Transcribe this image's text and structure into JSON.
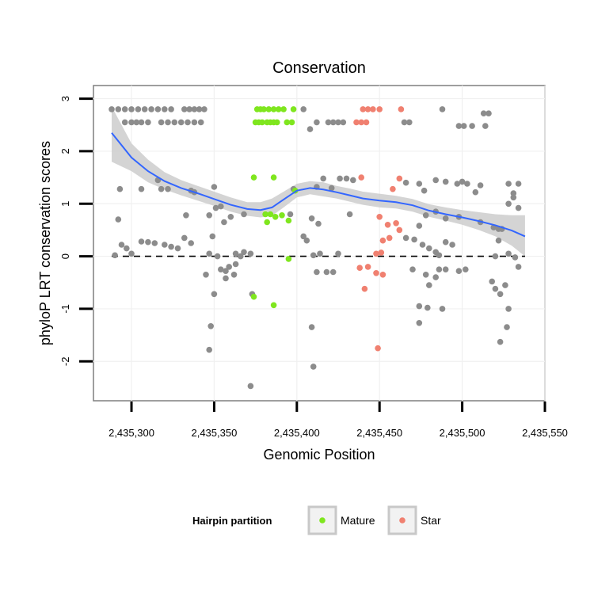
{
  "chart_data": {
    "type": "scatter",
    "title": "Conservation",
    "xlabel": "Genomic Position",
    "ylabel": "phyloP LRT conservation scores",
    "xlim": [
      2435277,
      2435550
    ],
    "ylim": [
      -2.75,
      3.25
    ],
    "x_ticks": [
      2435300,
      2435350,
      2435400,
      2435450,
      2435500,
      2435550
    ],
    "x_tick_labels": [
      "2,435,300",
      "2,435,350",
      "2,435,400",
      "2,435,450",
      "2,435,500",
      "2,435,550"
    ],
    "y_ticks": [
      -2,
      -1,
      0,
      1,
      2,
      3
    ],
    "y_tick_labels": [
      "-2",
      "-1",
      "0",
      "1",
      "2",
      "3"
    ],
    "reference_line": {
      "y": 0,
      "style": "dashed"
    },
    "legend": {
      "title": "Hairpin partition",
      "position": "bottom",
      "entries": [
        {
          "name": "Mature",
          "color": "#7fe61e"
        },
        {
          "name": "Star",
          "color": "#f08070"
        }
      ]
    },
    "colors": {
      "other": "#8c8c8c",
      "smooth": "#3366ff",
      "ribbon": "#cccccc"
    },
    "series": [
      {
        "name": "Mature",
        "color": "#7fe61e",
        "points": [
          [
            2435376,
            2.8
          ],
          [
            2435378,
            2.8
          ],
          [
            2435380,
            2.8
          ],
          [
            2435383,
            2.8
          ],
          [
            2435386,
            2.8
          ],
          [
            2435389,
            2.8
          ],
          [
            2435392,
            2.8
          ],
          [
            2435398,
            2.8
          ],
          [
            2435375,
            2.55
          ],
          [
            2435377,
            2.55
          ],
          [
            2435379,
            2.55
          ],
          [
            2435382,
            2.55
          ],
          [
            2435384,
            2.55
          ],
          [
            2435386,
            2.55
          ],
          [
            2435388,
            2.55
          ],
          [
            2435394,
            2.55
          ],
          [
            2435397,
            2.55
          ],
          [
            2435374,
            1.5
          ],
          [
            2435386,
            1.5
          ],
          [
            2435399,
            1.25
          ],
          [
            2435381,
            0.8
          ],
          [
            2435384,
            0.8
          ],
          [
            2435387,
            0.75
          ],
          [
            2435391,
            0.78
          ],
          [
            2435382,
            0.65
          ],
          [
            2435395,
            0.68
          ],
          [
            2435395,
            -0.05
          ],
          [
            2435374,
            -0.77
          ],
          [
            2435386,
            -0.93
          ]
        ]
      },
      {
        "name": "Star",
        "color": "#f08070",
        "points": [
          [
            2435440,
            2.8
          ],
          [
            2435443,
            2.8
          ],
          [
            2435446,
            2.8
          ],
          [
            2435450,
            2.8
          ],
          [
            2435463,
            2.8
          ],
          [
            2435436,
            2.55
          ],
          [
            2435439,
            2.55
          ],
          [
            2435442,
            2.55
          ],
          [
            2435439,
            1.5
          ],
          [
            2435462,
            1.48
          ],
          [
            2435458,
            1.28
          ],
          [
            2435450,
            0.75
          ],
          [
            2435455,
            0.6
          ],
          [
            2435460,
            0.63
          ],
          [
            2435462,
            0.5
          ],
          [
            2435452,
            0.3
          ],
          [
            2435456,
            0.35
          ],
          [
            2435448,
            0.05
          ],
          [
            2435451,
            0.07
          ],
          [
            2435438,
            -0.22
          ],
          [
            2435443,
            -0.2
          ],
          [
            2435448,
            -0.32
          ],
          [
            2435452,
            -0.35
          ],
          [
            2435441,
            -0.62
          ],
          [
            2435449,
            -1.75
          ]
        ]
      },
      {
        "name": "Other",
        "color": "#8c8c8c",
        "points": [
          [
            2435288,
            2.8
          ],
          [
            2435292,
            2.8
          ],
          [
            2435296,
            2.8
          ],
          [
            2435300,
            2.8
          ],
          [
            2435304,
            2.8
          ],
          [
            2435308,
            2.8
          ],
          [
            2435312,
            2.8
          ],
          [
            2435316,
            2.8
          ],
          [
            2435320,
            2.8
          ],
          [
            2435324,
            2.8
          ],
          [
            2435332,
            2.8
          ],
          [
            2435335,
            2.8
          ],
          [
            2435338,
            2.8
          ],
          [
            2435341,
            2.8
          ],
          [
            2435344,
            2.8
          ],
          [
            2435404,
            2.8
          ],
          [
            2435488,
            2.8
          ],
          [
            2435513,
            2.72
          ],
          [
            2435516,
            2.72
          ],
          [
            2435296,
            2.55
          ],
          [
            2435300,
            2.55
          ],
          [
            2435303,
            2.55
          ],
          [
            2435306,
            2.55
          ],
          [
            2435310,
            2.55
          ],
          [
            2435318,
            2.55
          ],
          [
            2435322,
            2.55
          ],
          [
            2435326,
            2.55
          ],
          [
            2435330,
            2.55
          ],
          [
            2435334,
            2.55
          ],
          [
            2435338,
            2.55
          ],
          [
            2435342,
            2.55
          ],
          [
            2435412,
            2.55
          ],
          [
            2435419,
            2.55
          ],
          [
            2435422,
            2.55
          ],
          [
            2435425,
            2.55
          ],
          [
            2435428,
            2.55
          ],
          [
            2435465,
            2.55
          ],
          [
            2435468,
            2.55
          ],
          [
            2435498,
            2.48
          ],
          [
            2435501,
            2.48
          ],
          [
            2435506,
            2.48
          ],
          [
            2435514,
            2.48
          ],
          [
            2435408,
            2.42
          ],
          [
            2435293,
            1.28
          ],
          [
            2435306,
            1.28
          ],
          [
            2435316,
            1.45
          ],
          [
            2435318,
            1.28
          ],
          [
            2435322,
            1.28
          ],
          [
            2435336,
            1.25
          ],
          [
            2435338,
            1.22
          ],
          [
            2435350,
            1.32
          ],
          [
            2435398,
            1.28
          ],
          [
            2435412,
            1.32
          ],
          [
            2435416,
            1.48
          ],
          [
            2435421,
            1.3
          ],
          [
            2435426,
            1.48
          ],
          [
            2435430,
            1.48
          ],
          [
            2435434,
            1.45
          ],
          [
            2435466,
            1.4
          ],
          [
            2435474,
            1.38
          ],
          [
            2435477,
            1.25
          ],
          [
            2435484,
            1.45
          ],
          [
            2435490,
            1.42
          ],
          [
            2435497,
            1.38
          ],
          [
            2435500,
            1.42
          ],
          [
            2435503,
            1.38
          ],
          [
            2435508,
            1.22
          ],
          [
            2435511,
            1.35
          ],
          [
            2435528,
            1.38
          ],
          [
            2435531,
            1.2
          ],
          [
            2435534,
            1.38
          ],
          [
            2435347,
            0.78
          ],
          [
            2435351,
            0.92
          ],
          [
            2435354,
            0.95
          ],
          [
            2435356,
            0.65
          ],
          [
            2435360,
            0.75
          ],
          [
            2435368,
            0.8
          ],
          [
            2435333,
            0.78
          ],
          [
            2435396,
            0.8
          ],
          [
            2435409,
            0.72
          ],
          [
            2435413,
            0.62
          ],
          [
            2435432,
            0.8
          ],
          [
            2435474,
            0.58
          ],
          [
            2435478,
            0.78
          ],
          [
            2435484,
            0.85
          ],
          [
            2435490,
            0.72
          ],
          [
            2435498,
            0.75
          ],
          [
            2435511,
            0.65
          ],
          [
            2435519,
            0.55
          ],
          [
            2435292,
            0.7
          ],
          [
            2435522,
            0.52
          ],
          [
            2435524,
            0.52
          ],
          [
            2435522,
            0.3
          ],
          [
            2435528,
            1.0
          ],
          [
            2435531,
            1.12
          ],
          [
            2435534,
            0.92
          ],
          [
            2435290,
            0.02
          ],
          [
            2435294,
            0.22
          ],
          [
            2435297,
            0.15
          ],
          [
            2435300,
            0.05
          ],
          [
            2435306,
            0.28
          ],
          [
            2435310,
            0.27
          ],
          [
            2435314,
            0.25
          ],
          [
            2435320,
            0.22
          ],
          [
            2435324,
            0.18
          ],
          [
            2435328,
            0.15
          ],
          [
            2435332,
            0.35
          ],
          [
            2435336,
            0.25
          ],
          [
            2435347,
            0.05
          ],
          [
            2435349,
            0.38
          ],
          [
            2435352,
            0.0
          ],
          [
            2435357,
            -0.28
          ],
          [
            2435359,
            -0.2
          ],
          [
            2435363,
            0.05
          ],
          [
            2435366,
            0.0
          ],
          [
            2435368,
            0.08
          ],
          [
            2435372,
            0.05
          ],
          [
            2435357,
            -0.42
          ],
          [
            2435362,
            -0.35
          ],
          [
            2435354,
            -0.25
          ],
          [
            2435345,
            -0.35
          ],
          [
            2435350,
            -0.72
          ],
          [
            2435363,
            -0.15
          ],
          [
            2435404,
            0.38
          ],
          [
            2435406,
            0.3
          ],
          [
            2435410,
            0.02
          ],
          [
            2435412,
            -0.3
          ],
          [
            2435414,
            0.05
          ],
          [
            2435418,
            -0.3
          ],
          [
            2435422,
            -0.3
          ],
          [
            2435425,
            0.05
          ],
          [
            2435466,
            0.35
          ],
          [
            2435471,
            0.32
          ],
          [
            2435476,
            0.22
          ],
          [
            2435480,
            0.15
          ],
          [
            2435484,
            0.08
          ],
          [
            2435486,
            0.02
          ],
          [
            2435490,
            0.27
          ],
          [
            2435494,
            0.22
          ],
          [
            2435470,
            -0.25
          ],
          [
            2435478,
            -0.35
          ],
          [
            2435486,
            -0.25
          ],
          [
            2435490,
            -0.25
          ],
          [
            2435498,
            -0.28
          ],
          [
            2435502,
            -0.25
          ],
          [
            2435480,
            -0.55
          ],
          [
            2435484,
            -0.4
          ],
          [
            2435474,
            -0.95
          ],
          [
            2435479,
            -0.98
          ],
          [
            2435488,
            -1.0
          ],
          [
            2435474,
            -1.27
          ],
          [
            2435518,
            -0.48
          ],
          [
            2435520,
            -0.62
          ],
          [
            2435523,
            -0.72
          ],
          [
            2435526,
            -0.55
          ],
          [
            2435528,
            -1.0
          ],
          [
            2435527,
            -1.35
          ],
          [
            2435523,
            -1.63
          ],
          [
            2435528,
            0.05
          ],
          [
            2435532,
            -0.02
          ],
          [
            2435534,
            -0.2
          ],
          [
            2435520,
            0.0
          ],
          [
            2435348,
            -1.33
          ],
          [
            2435347,
            -1.78
          ],
          [
            2435373,
            -0.72
          ],
          [
            2435409,
            -1.35
          ],
          [
            2435410,
            -2.1
          ],
          [
            2435372,
            -2.47
          ]
        ]
      }
    ],
    "smooth_curve": {
      "x": [
        2435288,
        2435300,
        2435310,
        2435320,
        2435330,
        2435340,
        2435350,
        2435360,
        2435370,
        2435378,
        2435385,
        2435392,
        2435400,
        2435408,
        2435416,
        2435424,
        2435432,
        2435440,
        2435450,
        2435460,
        2435470,
        2435480,
        2435490,
        2435500,
        2435510,
        2435520,
        2435530,
        2435538
      ],
      "y": [
        2.35,
        1.88,
        1.62,
        1.43,
        1.3,
        1.2,
        1.09,
        0.98,
        0.9,
        0.88,
        0.93,
        1.08,
        1.25,
        1.3,
        1.27,
        1.22,
        1.16,
        1.1,
        1.06,
        1.03,
        0.97,
        0.87,
        0.8,
        0.74,
        0.67,
        0.59,
        0.49,
        0.38
      ],
      "lower": [
        1.8,
        1.62,
        1.41,
        1.27,
        1.16,
        1.06,
        0.96,
        0.85,
        0.77,
        0.74,
        0.77,
        0.93,
        1.12,
        1.18,
        1.14,
        1.1,
        1.04,
        0.98,
        0.93,
        0.91,
        0.85,
        0.75,
        0.68,
        0.6,
        0.5,
        0.38,
        0.2,
        0.0
      ],
      "upper": [
        2.85,
        2.15,
        1.84,
        1.6,
        1.45,
        1.34,
        1.23,
        1.12,
        1.03,
        1.03,
        1.1,
        1.23,
        1.38,
        1.43,
        1.41,
        1.34,
        1.29,
        1.23,
        1.19,
        1.15,
        1.09,
        0.99,
        0.93,
        0.88,
        0.84,
        0.8,
        0.78,
        0.78
      ]
    }
  }
}
